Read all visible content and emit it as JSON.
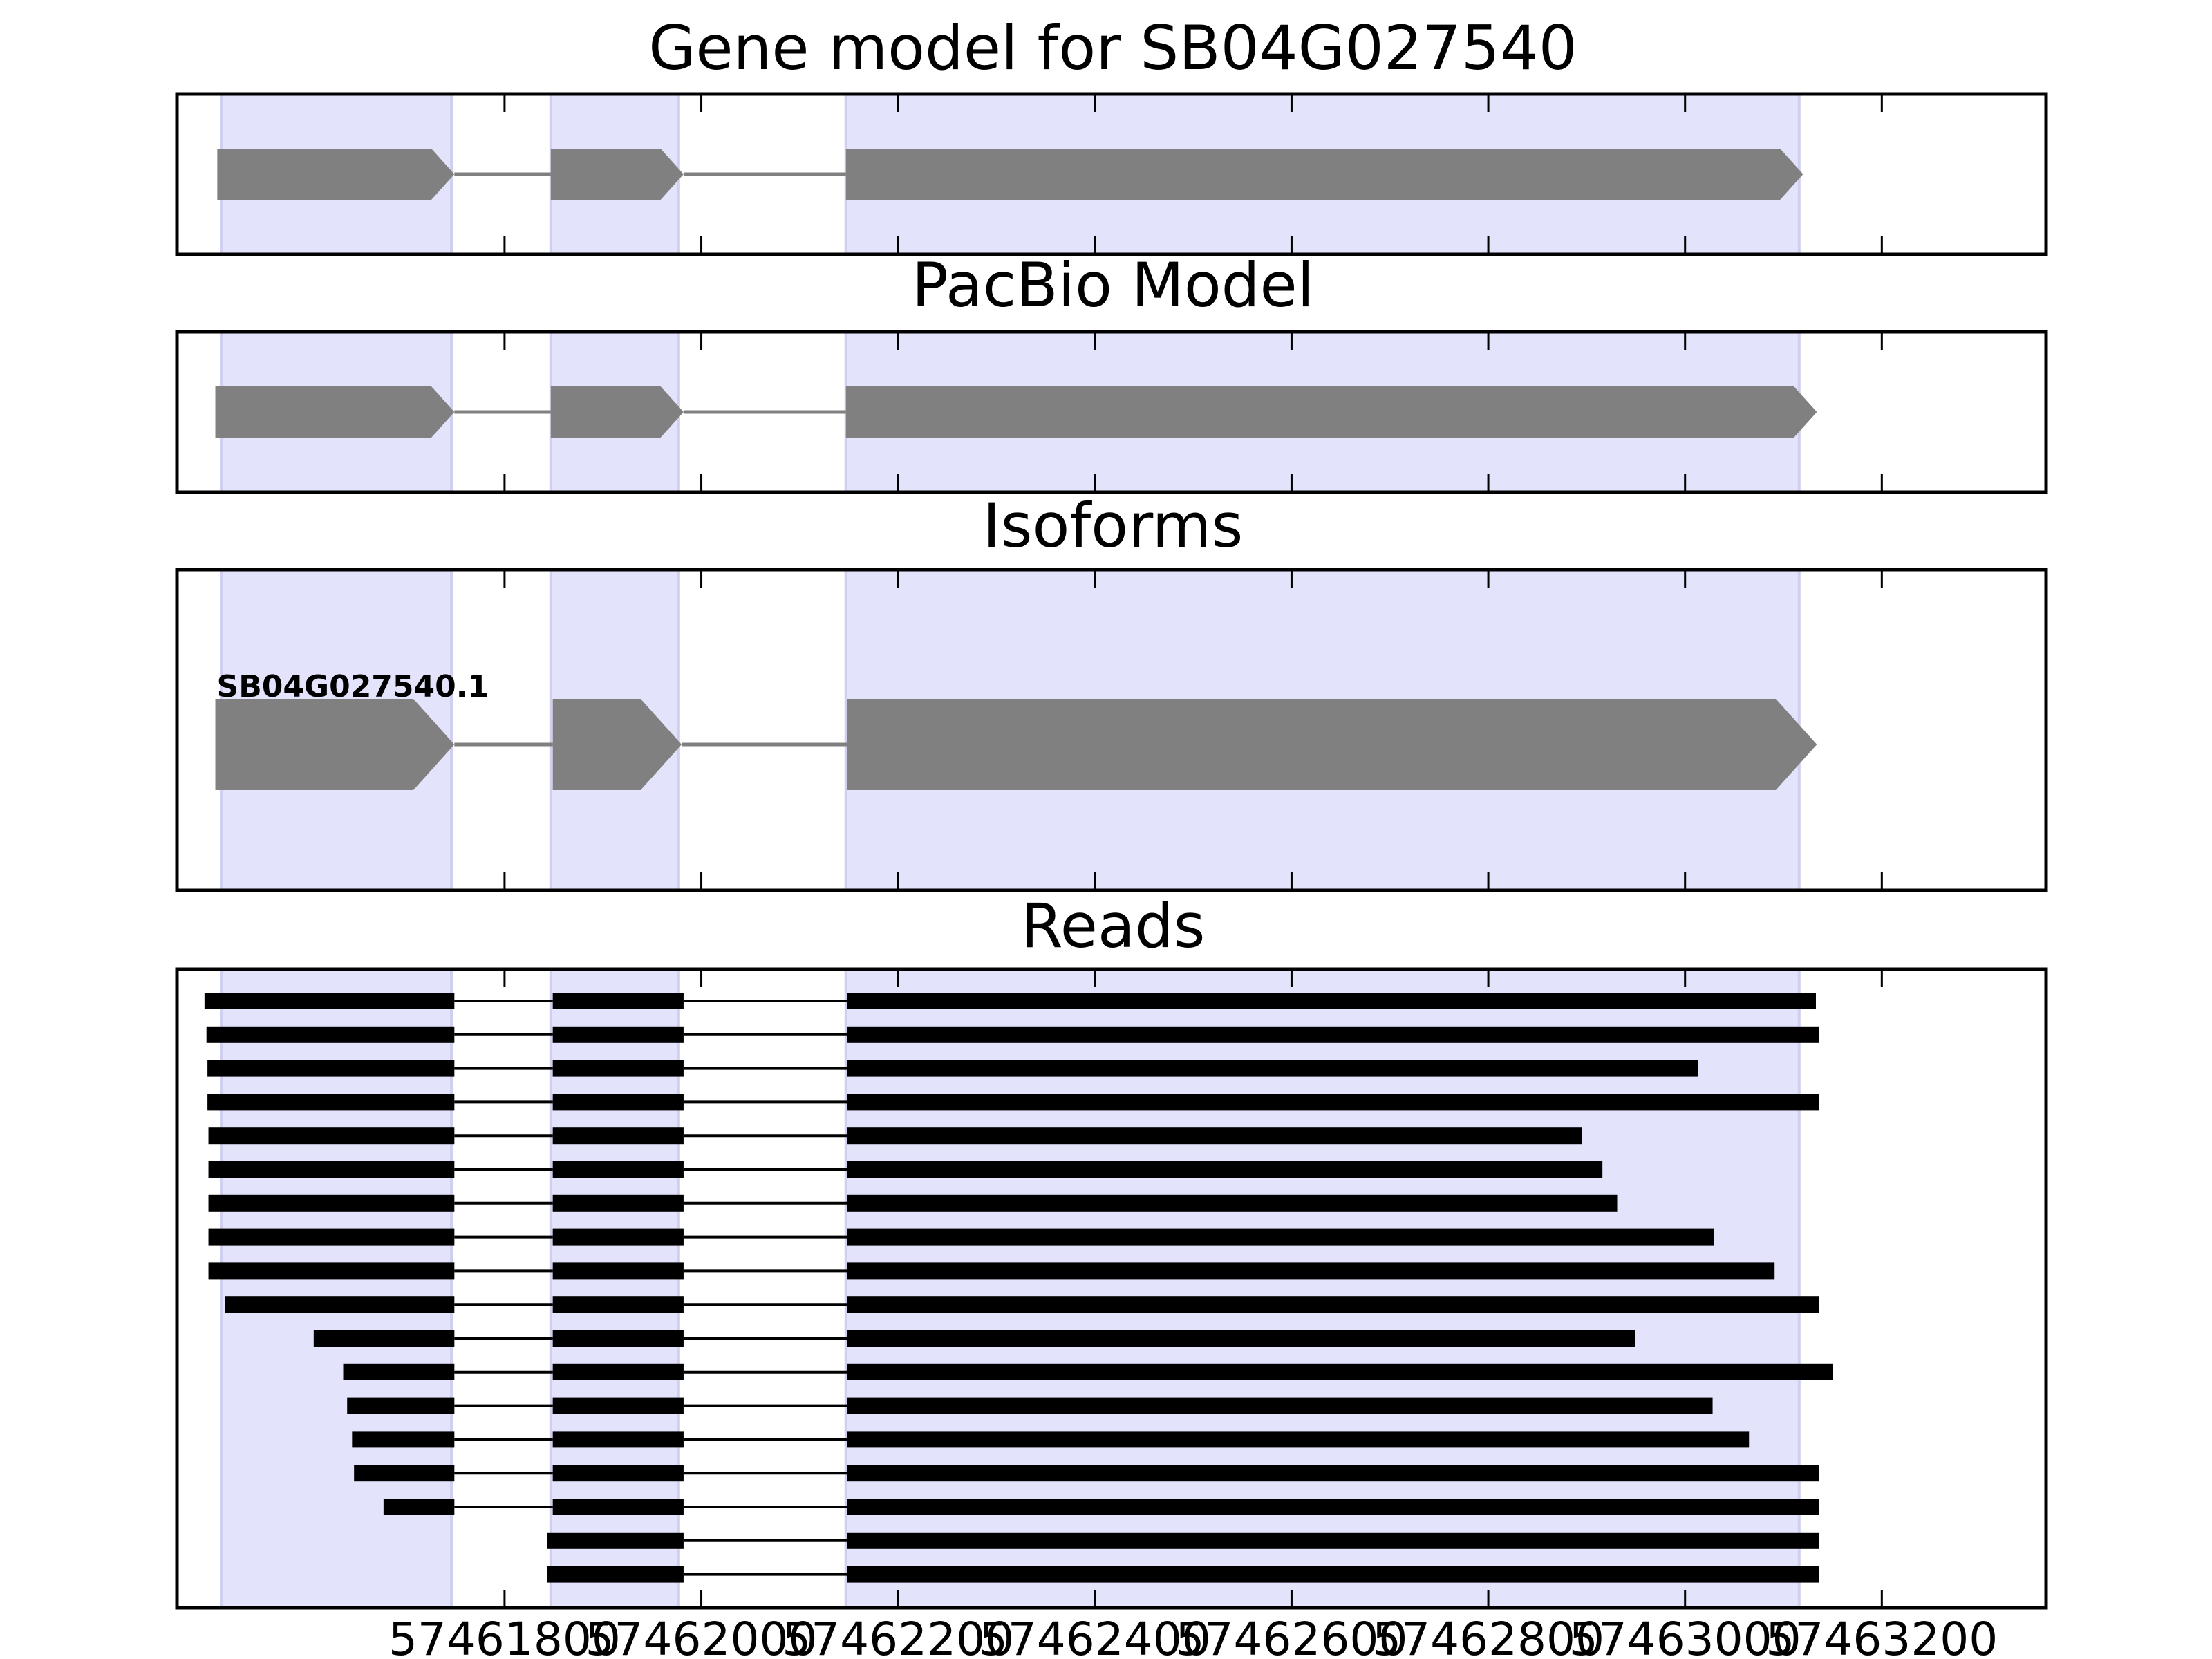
{
  "chart_data": {
    "type": "gene_model",
    "x_range": [
      57461467,
      57463367
    ],
    "x_ticks": [
      57461800,
      57462000,
      57462200,
      57462400,
      57462600,
      57462800,
      57463000,
      57463200
    ],
    "x_tick_labels": [
      "57461800",
      "57462000",
      "57462200",
      "57462400",
      "57462600",
      "57462800",
      "57463000",
      "57463200"
    ],
    "exon_regions": [
      [
        57461512,
        57461746
      ],
      [
        57461847,
        57461977
      ],
      [
        57462147,
        57463116
      ]
    ],
    "panels": [
      {
        "id": "gene-model",
        "title": "Gene model for SB04G027540",
        "strand": "+",
        "exons": [
          [
            57461508,
            57461749
          ],
          [
            57461847,
            57461982
          ],
          [
            57462147,
            57463120
          ]
        ]
      },
      {
        "id": "pacbio-model",
        "title": "PacBio Model",
        "strand": "+",
        "exons": [
          [
            57461506,
            57461749
          ],
          [
            57461847,
            57461982
          ],
          [
            57462147,
            57463134
          ]
        ]
      },
      {
        "id": "isoforms",
        "title": "Isoforms",
        "isoforms": [
          {
            "name": "SB04G027540.1",
            "strand": "+",
            "exons": [
              [
                57461506,
                57461749
              ],
              [
                57461849,
                57461980
              ],
              [
                57462148,
                57463134
              ]
            ]
          }
        ]
      },
      {
        "id": "reads",
        "title": "Reads",
        "reads": [
          [
            [
              57461495,
              57461749
            ],
            [
              57461849,
              57461982
            ],
            [
              57462148,
              57463133
            ]
          ],
          [
            [
              57461497,
              57461749
            ],
            [
              57461849,
              57461982
            ],
            [
              57462148,
              57463136
            ]
          ],
          [
            [
              57461498,
              57461749
            ],
            [
              57461849,
              57461982
            ],
            [
              57462148,
              57463013
            ]
          ],
          [
            [
              57461498,
              57461749
            ],
            [
              57461849,
              57461982
            ],
            [
              57462148,
              57463136
            ]
          ],
          [
            [
              57461499,
              57461749
            ],
            [
              57461849,
              57461982
            ],
            [
              57462148,
              57462895
            ]
          ],
          [
            [
              57461499,
              57461749
            ],
            [
              57461849,
              57461982
            ],
            [
              57462148,
              57462916
            ]
          ],
          [
            [
              57461499,
              57461749
            ],
            [
              57461849,
              57461982
            ],
            [
              57462148,
              57462931
            ]
          ],
          [
            [
              57461499,
              57461749
            ],
            [
              57461849,
              57461982
            ],
            [
              57462148,
              57463029
            ]
          ],
          [
            [
              57461499,
              57461749
            ],
            [
              57461849,
              57461982
            ],
            [
              57462148,
              57463091
            ]
          ],
          [
            [
              57461516,
              57461749
            ],
            [
              57461849,
              57461982
            ],
            [
              57462148,
              57463136
            ]
          ],
          [
            [
              57461606,
              57461749
            ],
            [
              57461849,
              57461982
            ],
            [
              57462148,
              57462949
            ]
          ],
          [
            [
              57461636,
              57461749
            ],
            [
              57461849,
              57461982
            ],
            [
              57462148,
              57463150
            ]
          ],
          [
            [
              57461640,
              57461749
            ],
            [
              57461849,
              57461982
            ],
            [
              57462148,
              57463028
            ]
          ],
          [
            [
              57461645,
              57461749
            ],
            [
              57461849,
              57461982
            ],
            [
              57462148,
              57463065
            ]
          ],
          [
            [
              57461647,
              57461749
            ],
            [
              57461849,
              57461982
            ],
            [
              57462148,
              57463136
            ]
          ],
          [
            [
              57461677,
              57461749
            ],
            [
              57461849,
              57461982
            ],
            [
              57462148,
              57463136
            ]
          ],
          [
            [
              57461843,
              57461982
            ],
            [
              57462148,
              57463136
            ]
          ],
          [
            [
              57461843,
              57461982
            ],
            [
              57462148,
              57463136
            ]
          ]
        ]
      }
    ]
  }
}
